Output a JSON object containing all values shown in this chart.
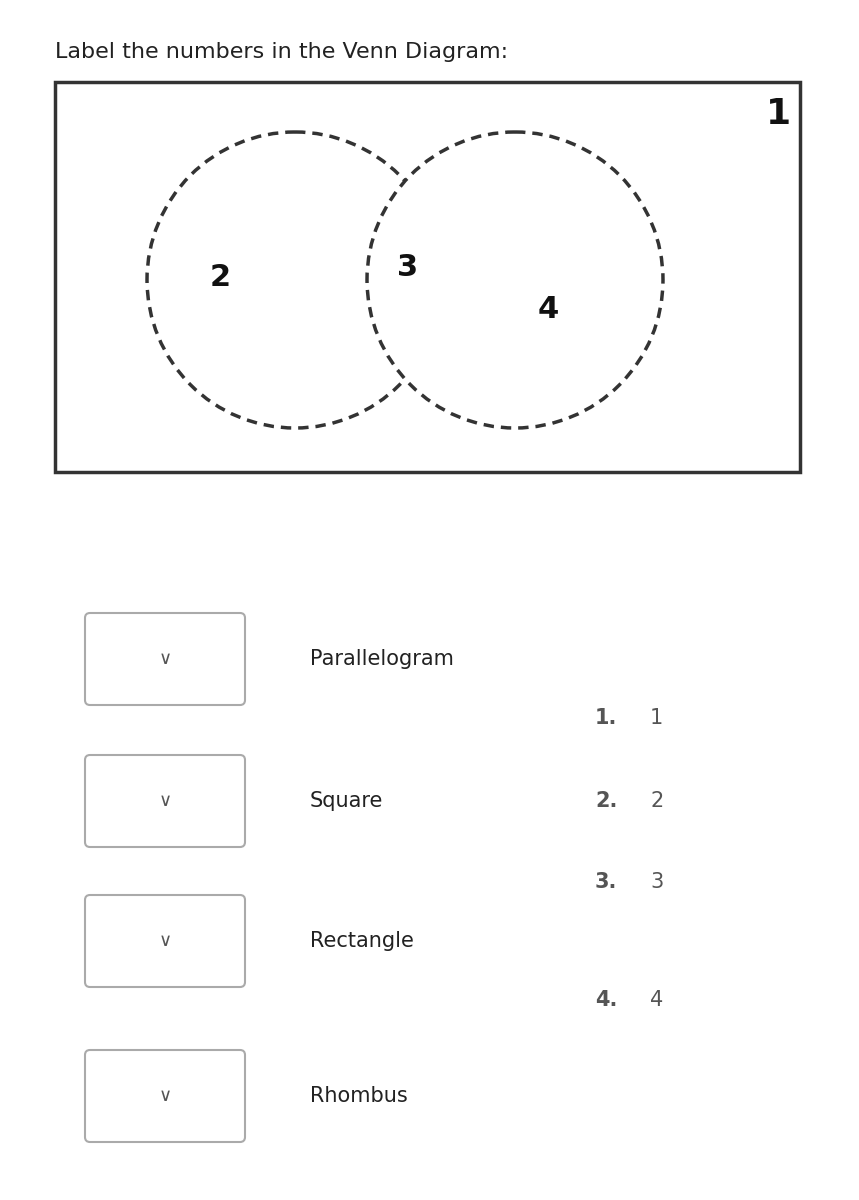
{
  "title": "Label the numbers in the Venn Diagram:",
  "title_fontsize": 16,
  "title_color": "#222222",
  "background_color": "#ffffff",
  "venn_box_color": "#333333",
  "circle_color": "#333333",
  "label_1_text": "1",
  "label_2_text": "2",
  "label_3_text": "3",
  "label_4_text": "4",
  "venn_label_fontsize": 22,
  "venn_label_fontweight": "bold",
  "venn_label_color": "#111111",
  "items": [
    "Parallelogram",
    "Square",
    "Rectangle",
    "Rhombus"
  ],
  "item_fontsize": 15,
  "item_color": "#222222",
  "answer_nums": [
    "1.",
    "2.",
    "3.",
    "4."
  ],
  "answer_vals": [
    "1",
    "2",
    "3",
    "4"
  ],
  "answer_fontsize": 15,
  "answer_color": "#555555",
  "dropdown_edge_color": "#aaaaaa",
  "dropdown_arrow_color": "#555555",
  "dropdown_arrow_char": "∨"
}
